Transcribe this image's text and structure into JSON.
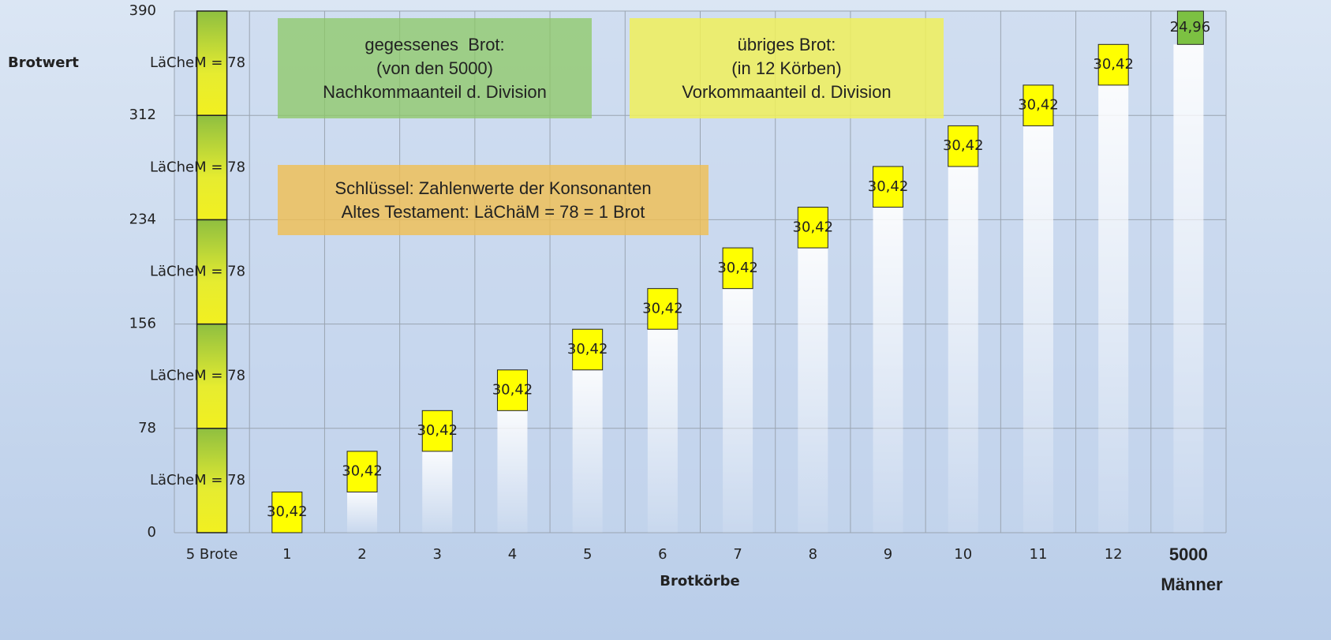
{
  "chart_data": {
    "type": "waterfall",
    "y_label": "Brotwert",
    "x_label": "Brotkörbe",
    "categories": [
      "5 Brote",
      "1",
      "2",
      "3",
      "4",
      "5",
      "6",
      "7",
      "8",
      "9",
      "10",
      "11",
      "12",
      "5000 Männer"
    ],
    "brote": {
      "values": [
        78,
        78,
        78,
        78,
        78
      ],
      "value_labels": [
        "LäCheM = 78",
        "LäCheM = 78",
        "LäCheM = 78",
        "LäCheM = 78",
        "LäCheM = 78"
      ],
      "color": "#c8d83a"
    },
    "koerbe": {
      "values": [
        30.42,
        30.42,
        30.42,
        30.42,
        30.42,
        30.42,
        30.42,
        30.42,
        30.42,
        30.42,
        30.42,
        30.42
      ],
      "value_labels": [
        "30,42",
        "30,42",
        "30,42",
        "30,42",
        "30,42",
        "30,42",
        "30,42",
        "30,42",
        "30,42",
        "30,42",
        "30,42",
        "30,42"
      ],
      "color": "#ffff00"
    },
    "maenner": {
      "value": 24.96,
      "value_label": "24,96",
      "color": "#7cc142"
    },
    "ylim": [
      0,
      390
    ],
    "yticks": [
      0,
      78,
      156,
      234,
      312,
      390
    ],
    "grid": true,
    "annotations": [
      {
        "lines": [
          "gegessenes  Brot:",
          "(von den 5000)",
          "Nachkommaanteil d. Division"
        ]
      },
      {
        "lines": [
          "übriges Brot:",
          "(in 12 Körben)",
          "Vorkommaanteil d. Division"
        ]
      },
      {
        "lines": [
          "Schlüssel: Zahlenwerte der Konsonanten",
          "Altes Testament: LäChäM = 78 = 1 Brot"
        ]
      }
    ]
  }
}
